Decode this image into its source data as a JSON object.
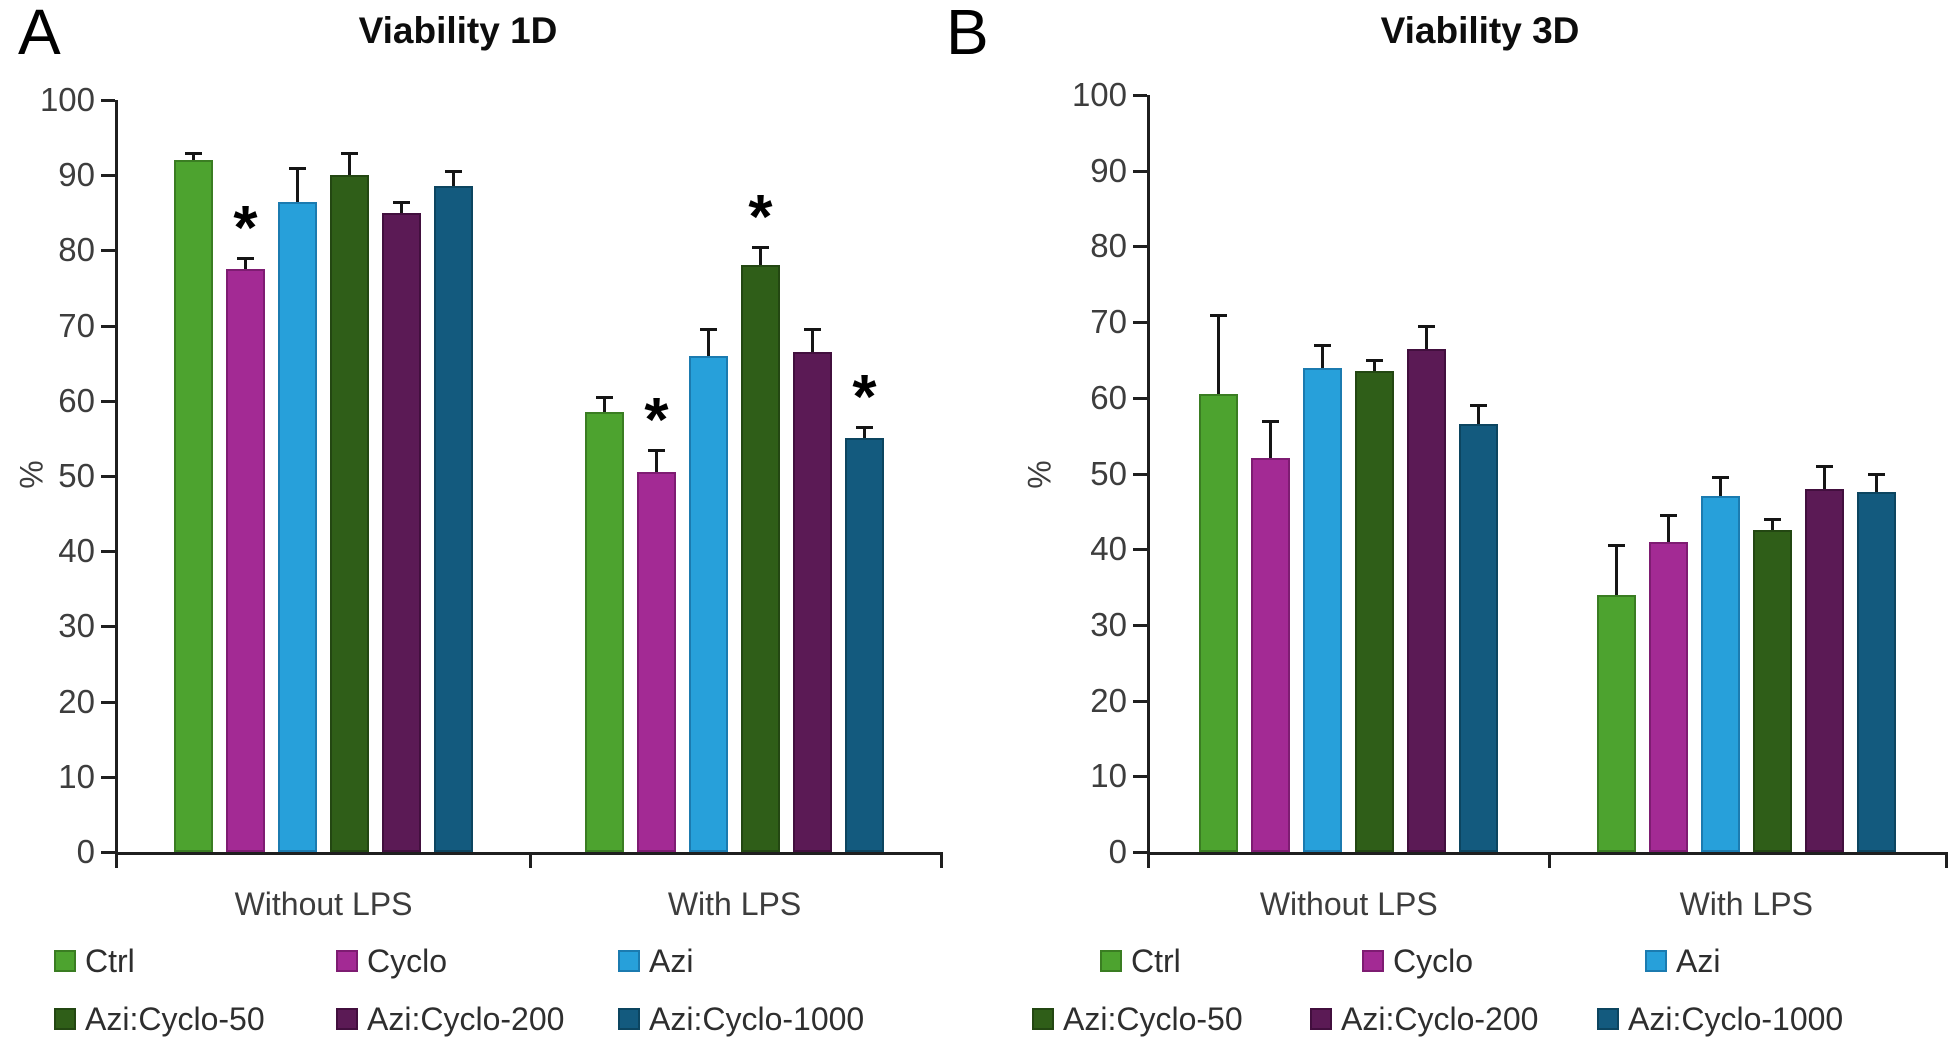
{
  "chart_data": [
    {
      "panel_letter": "A",
      "type": "bar",
      "title": "Viability 1D",
      "ylabel": "%",
      "ylim": [
        0,
        100
      ],
      "ytick_step": 10,
      "grid": false,
      "legend_position": "bottom",
      "categories": [
        "Without LPS",
        "With LPS"
      ],
      "series": [
        {
          "name": "Ctrl",
          "color": "#4DA32F",
          "border": "#3A7D22",
          "values": [
            92,
            58.5
          ],
          "errors": [
            1,
            2
          ],
          "significant": [
            false,
            false
          ]
        },
        {
          "name": "Cyclo",
          "color": "#A32A94",
          "border": "#7E1C72",
          "values": [
            77.5,
            50.5
          ],
          "errors": [
            1.5,
            3
          ],
          "significant": [
            true,
            true
          ]
        },
        {
          "name": "Azi",
          "color": "#27A0DA",
          "border": "#1B7BB0",
          "values": [
            86.5,
            66
          ],
          "errors": [
            4.5,
            3.5
          ],
          "significant": [
            false,
            false
          ]
        },
        {
          "name": "Azi:Cyclo-50",
          "color": "#2F5E18",
          "border": "#234712",
          "values": [
            90,
            78
          ],
          "errors": [
            3,
            2.5
          ],
          "significant": [
            false,
            true
          ]
        },
        {
          "name": "Azi:Cyclo-200",
          "color": "#5B1A55",
          "border": "#420F3E",
          "values": [
            85,
            66.5
          ],
          "errors": [
            1.5,
            3
          ],
          "significant": [
            false,
            false
          ]
        },
        {
          "name": "Azi:Cyclo-1000",
          "color": "#135A7E",
          "border": "#0C4560",
          "values": [
            88.5,
            55
          ],
          "errors": [
            2,
            1.5
          ],
          "significant": [
            false,
            true
          ]
        }
      ]
    },
    {
      "panel_letter": "B",
      "type": "bar",
      "title": "Viability 3D",
      "ylabel": "%",
      "ylim": [
        0,
        100
      ],
      "ytick_step": 10,
      "grid": false,
      "legend_position": "bottom",
      "categories": [
        "Without LPS",
        "With LPS"
      ],
      "series": [
        {
          "name": "Ctrl",
          "color": "#4DA32F",
          "border": "#3A7D22",
          "values": [
            60.5,
            34
          ],
          "errors": [
            10.5,
            6.5
          ],
          "significant": [
            false,
            false
          ]
        },
        {
          "name": "Cyclo",
          "color": "#A32A94",
          "border": "#7E1C72",
          "values": [
            52,
            41
          ],
          "errors": [
            5,
            3.5
          ],
          "significant": [
            false,
            false
          ]
        },
        {
          "name": "Azi",
          "color": "#27A0DA",
          "border": "#1B7BB0",
          "values": [
            64,
            47
          ],
          "errors": [
            3,
            2.5
          ],
          "significant": [
            false,
            false
          ]
        },
        {
          "name": "Azi:Cyclo-50",
          "color": "#2F5E18",
          "border": "#234712",
          "values": [
            63.5,
            42.5
          ],
          "errors": [
            1.5,
            1.5
          ],
          "significant": [
            false,
            false
          ]
        },
        {
          "name": "Azi:Cyclo-200",
          "color": "#5B1A55",
          "border": "#420F3E",
          "values": [
            66.5,
            48
          ],
          "errors": [
            3,
            3
          ],
          "significant": [
            false,
            false
          ]
        },
        {
          "name": "Azi:Cyclo-1000",
          "color": "#135A7E",
          "border": "#0C4560",
          "values": [
            56.5,
            47.5
          ],
          "errors": [
            2.5,
            2.5
          ],
          "significant": [
            false,
            false
          ]
        }
      ]
    }
  ],
  "legend": {
    "rows": [
      [
        "Ctrl",
        "Cyclo",
        "Azi"
      ],
      [
        "Azi:Cyclo-50",
        "Azi:Cyclo-200",
        "Azi:Cyclo-1000"
      ]
    ]
  },
  "significance_marker": "*"
}
